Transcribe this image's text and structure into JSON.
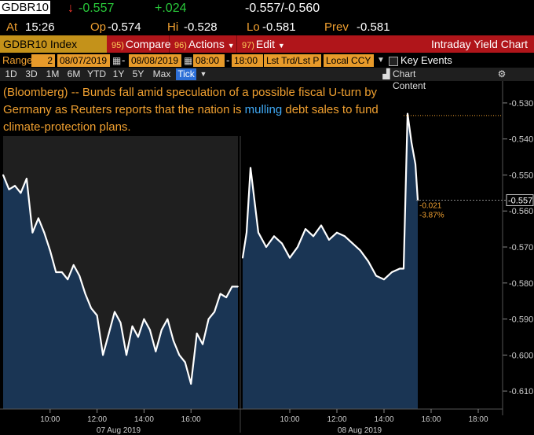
{
  "quote": {
    "ticker": "GDBR10",
    "arrow": "↓",
    "last": "-0.557",
    "change": "+.024",
    "bidask": "-0.557/-0.560",
    "at_label": "At",
    "time": "15:26",
    "op_label": "Op",
    "open": "-0.574",
    "hi_label": "Hi",
    "high": "-0.528",
    "lo_label": "Lo",
    "low": "-0.581",
    "prev_label": "Prev",
    "prev": "-0.581"
  },
  "toolbar": {
    "security": "GDBR10 Index",
    "compare_num": "95)",
    "compare": "Compare",
    "actions_num": "96)",
    "actions": "Actions",
    "edit_num": "97)",
    "edit": "Edit",
    "title": "Intraday Yield Chart"
  },
  "range": {
    "label": "Range",
    "days": "2",
    "start_date": "08/07/2019",
    "end_date": "08/08/2019",
    "start_time": "08:00",
    "end_time": "18:00",
    "field": "Lst Trd/Lst P",
    "currency": "Local CCY",
    "key_events": "Key Events"
  },
  "periods": [
    "1D",
    "3D",
    "1M",
    "6M",
    "YTD",
    "1Y",
    "5Y",
    "Max",
    "Tick"
  ],
  "selected_period": "Tick",
  "chart_content": "Chart Content",
  "news": {
    "before": "(Bloomberg) -- Bunds fall amid speculation of a possible fiscal U-turn by Germany as Reuters reports that the nation is ",
    "highlight": "mulling",
    "after": " debt sales to fund climate-protection plans."
  },
  "colors": {
    "background": "#000000",
    "toolbar": "#b0151a",
    "area_fill": "#1a3554",
    "shade_day1": "#1f1f1f",
    "line": "#ffffff",
    "accent_orange": "#f0a030",
    "up": "#29c93a",
    "down": "#ff3b30"
  },
  "chart_data": {
    "type": "area",
    "ylim": [
      -0.615,
      -0.525
    ],
    "yticks": [
      "-0.530",
      "-0.540",
      "-0.550",
      "-0.560",
      "-0.570",
      "-0.580",
      "-0.590",
      "-0.600",
      "-0.610"
    ],
    "xticks_day1": [
      "10:00",
      "12:00",
      "14:00",
      "16:00"
    ],
    "xticks_day2": [
      "10:00",
      "12:00",
      "14:00",
      "16:00",
      "18:00"
    ],
    "date_labels": [
      "07 Aug 2019",
      "08 Aug 2019"
    ],
    "last_value_label": "-0.557",
    "change_label": "-0.021",
    "pct_label": "-3.87%",
    "high_ref": -0.5335,
    "series": [
      {
        "day": "07 Aug 2019",
        "x": [
          "08:00",
          "08:15",
          "08:30",
          "08:45",
          "09:00",
          "09:15",
          "09:30",
          "09:45",
          "10:00",
          "10:15",
          "10:30",
          "10:45",
          "11:00",
          "11:15",
          "11:30",
          "11:45",
          "12:00",
          "12:15",
          "12:30",
          "12:45",
          "13:00",
          "13:15",
          "13:30",
          "13:45",
          "14:00",
          "14:15",
          "14:30",
          "14:45",
          "15:00",
          "15:15",
          "15:30",
          "15:45",
          "16:00",
          "16:15",
          "16:30",
          "16:45",
          "17:00",
          "17:15",
          "17:30",
          "17:45",
          "18:00"
        ],
        "values": [
          -0.55,
          -0.554,
          -0.553,
          -0.555,
          -0.551,
          -0.566,
          -0.562,
          -0.566,
          -0.571,
          -0.577,
          -0.577,
          -0.579,
          -0.575,
          -0.578,
          -0.583,
          -0.587,
          -0.589,
          -0.6,
          -0.594,
          -0.588,
          -0.591,
          -0.6,
          -0.592,
          -0.595,
          -0.59,
          -0.593,
          -0.599,
          -0.593,
          -0.59,
          -0.596,
          -0.6,
          -0.602,
          -0.608,
          -0.594,
          -0.597,
          -0.59,
          -0.588,
          -0.583,
          -0.584,
          -0.581,
          -0.581
        ]
      },
      {
        "day": "08 Aug 2019",
        "x": [
          "08:00",
          "08:10",
          "08:20",
          "08:40",
          "09:00",
          "09:20",
          "09:40",
          "10:00",
          "10:20",
          "10:40",
          "11:00",
          "11:20",
          "11:40",
          "12:00",
          "12:20",
          "12:40",
          "13:00",
          "13:20",
          "13:40",
          "14:00",
          "14:20",
          "14:40",
          "14:50",
          "15:00",
          "15:10",
          "15:20",
          "15:26"
        ],
        "values": [
          -0.573,
          -0.566,
          -0.548,
          -0.566,
          -0.57,
          -0.567,
          -0.569,
          -0.573,
          -0.57,
          -0.565,
          -0.567,
          -0.564,
          -0.568,
          -0.566,
          -0.567,
          -0.569,
          -0.571,
          -0.574,
          -0.578,
          -0.579,
          -0.577,
          -0.576,
          -0.576,
          -0.533,
          -0.541,
          -0.547,
          -0.557
        ]
      }
    ]
  }
}
